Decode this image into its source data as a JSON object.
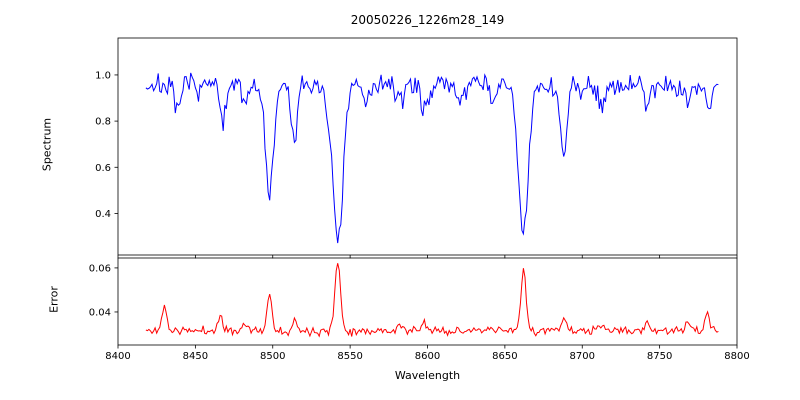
{
  "figure": {
    "title": "20050226_1226m28_149",
    "xlabel": "Wavelength",
    "background": "#ffffff"
  },
  "chart_data": [
    {
      "type": "line",
      "name": "spectrum",
      "ylabel": "Spectrum",
      "color": "#0000ff",
      "legend": "none",
      "grid": false,
      "xlim": [
        8400,
        8800
      ],
      "ylim": [
        0.22,
        1.16
      ],
      "yticks": [
        0.4,
        0.6,
        0.8,
        1.0
      ],
      "ytick_labels": [
        "0.4",
        "0.6",
        "0.8",
        "1.0"
      ],
      "x_start": 8418,
      "x_end": 8788,
      "x_step": 1,
      "base": 0.955,
      "noise_sigma": 0.025,
      "seed": 7,
      "features": [
        {
          "center": 8438,
          "amplitude": -0.12,
          "width": 2.0
        },
        {
          "center": 8468,
          "amplitude": -0.17,
          "width": 2.0
        },
        {
          "center": 8482,
          "amplitude": -0.07,
          "width": 1.8
        },
        {
          "center": 8498,
          "amplitude": -0.48,
          "width": 2.6
        },
        {
          "center": 8514,
          "amplitude": -0.24,
          "width": 2.0
        },
        {
          "center": 8542,
          "amplitude": -0.66,
          "width": 3.6
        },
        {
          "center": 8560,
          "amplitude": -0.07,
          "width": 1.8
        },
        {
          "center": 8582,
          "amplitude": -0.08,
          "width": 1.8
        },
        {
          "center": 8598,
          "amplitude": -0.12,
          "width": 1.8
        },
        {
          "center": 8621,
          "amplitude": -0.07,
          "width": 1.8
        },
        {
          "center": 8642,
          "amplitude": -0.06,
          "width": 1.8
        },
        {
          "center": 8662,
          "amplitude": -0.65,
          "width": 3.2
        },
        {
          "center": 8688,
          "amplitude": -0.31,
          "width": 2.2
        },
        {
          "center": 8713,
          "amplitude": -0.09,
          "width": 1.8
        },
        {
          "center": 8742,
          "amplitude": -0.08,
          "width": 1.8
        },
        {
          "center": 8768,
          "amplitude": -0.07,
          "width": 1.8
        },
        {
          "center": 8782,
          "amplitude": -0.12,
          "width": 1.6
        }
      ]
    },
    {
      "type": "line",
      "name": "error",
      "ylabel": "Error",
      "xlabel": "Wavelength",
      "color": "#ff0000",
      "legend": "none",
      "grid": false,
      "xlim": [
        8400,
        8800
      ],
      "ylim": [
        0.025,
        0.0645
      ],
      "yticks": [
        0.04,
        0.06
      ],
      "ytick_labels": [
        "0.04",
        "0.06"
      ],
      "xticks": [
        8400,
        8450,
        8500,
        8550,
        8600,
        8650,
        8700,
        8750,
        8800
      ],
      "xtick_labels": [
        "8400",
        "8450",
        "8500",
        "8550",
        "8600",
        "8650",
        "8700",
        "8750",
        "8800"
      ],
      "x_start": 8418,
      "x_end": 8788,
      "x_step": 1,
      "base": 0.0315,
      "noise_sigma": 0.0009,
      "seed": 11,
      "features": [
        {
          "center": 8430,
          "amplitude": 0.012,
          "width": 1.4
        },
        {
          "center": 8466,
          "amplitude": 0.007,
          "width": 1.4
        },
        {
          "center": 8482,
          "amplitude": 0.004,
          "width": 1.4
        },
        {
          "center": 8498,
          "amplitude": 0.017,
          "width": 1.5
        },
        {
          "center": 8514,
          "amplitude": 0.005,
          "width": 1.4
        },
        {
          "center": 8542,
          "amplitude": 0.031,
          "width": 1.8
        },
        {
          "center": 8582,
          "amplitude": 0.003,
          "width": 1.4
        },
        {
          "center": 8598,
          "amplitude": 0.004,
          "width": 1.4
        },
        {
          "center": 8662,
          "amplitude": 0.027,
          "width": 1.7
        },
        {
          "center": 8688,
          "amplitude": 0.007,
          "width": 1.4
        },
        {
          "center": 8713,
          "amplitude": 0.003,
          "width": 1.4
        },
        {
          "center": 8742,
          "amplitude": 0.004,
          "width": 1.4
        },
        {
          "center": 8768,
          "amplitude": 0.004,
          "width": 1.4
        },
        {
          "center": 8781,
          "amplitude": 0.009,
          "width": 1.2
        }
      ]
    }
  ]
}
